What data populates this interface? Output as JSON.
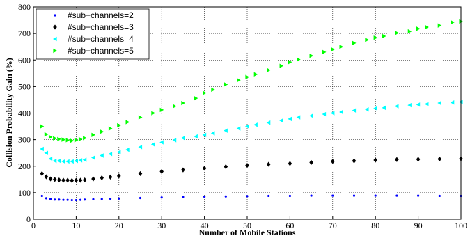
{
  "chart_data": {
    "type": "scatter",
    "xlabel": "Number of Mobile Stations",
    "ylabel": "Collision Probability Gain (%)",
    "xlim": [
      0,
      100
    ],
    "ylim": [
      0,
      800
    ],
    "xticks": [
      0,
      10,
      20,
      30,
      40,
      50,
      60,
      70,
      80,
      90,
      100
    ],
    "yticks": [
      0,
      100,
      200,
      300,
      400,
      500,
      600,
      700,
      800
    ],
    "grid": true,
    "legend_position": "top-left",
    "series": [
      {
        "name": "#sub−channels=2",
        "color": "#0000ff",
        "marker": "circle",
        "x": [
          2,
          3,
          4,
          5,
          6,
          7,
          8,
          9,
          10,
          11,
          12,
          14,
          16,
          18,
          20,
          25,
          30,
          35,
          40,
          45,
          50,
          55,
          60,
          65,
          70,
          75,
          80,
          85,
          90,
          95,
          100
        ],
        "y": [
          88,
          79,
          76,
          74,
          74,
          73,
          73,
          72,
          72,
          73,
          74,
          75,
          76,
          77,
          78,
          80,
          82,
          84,
          85,
          86,
          87,
          88,
          88,
          89,
          89,
          89,
          89,
          89,
          89,
          88,
          88
        ]
      },
      {
        "name": "#sub−channels=3",
        "color": "#000000",
        "marker": "diamond",
        "x": [
          2,
          3,
          4,
          5,
          6,
          7,
          8,
          9,
          10,
          11,
          12,
          14,
          16,
          18,
          20,
          25,
          30,
          35,
          40,
          45,
          50,
          55,
          60,
          65,
          70,
          75,
          80,
          85,
          90,
          95,
          100
        ],
        "y": [
          172,
          160,
          152,
          150,
          148,
          147,
          147,
          146,
          147,
          147,
          148,
          152,
          156,
          159,
          163,
          172,
          180,
          186,
          192,
          198,
          203,
          207,
          210,
          214,
          218,
          220,
          223,
          225,
          226,
          227,
          228
        ]
      },
      {
        "name": "#sub−channels=4",
        "color": "#00ffff",
        "marker": "triangle-left",
        "x": [
          2,
          3,
          4,
          5,
          6,
          7,
          8,
          9,
          10,
          11,
          12,
          14,
          16,
          18,
          20,
          22,
          25,
          28,
          30,
          33,
          35,
          38,
          40,
          42,
          45,
          48,
          50,
          52,
          55,
          58,
          60,
          62,
          65,
          68,
          70,
          72,
          75,
          78,
          80,
          82,
          85,
          88,
          90,
          92,
          95,
          98,
          100
        ],
        "y": [
          265,
          250,
          228,
          220,
          220,
          218,
          218,
          218,
          220,
          222,
          224,
          232,
          240,
          246,
          253,
          262,
          272,
          282,
          290,
          298,
          306,
          312,
          318,
          324,
          334,
          342,
          350,
          356,
          364,
          372,
          378,
          384,
          390,
          396,
          400,
          404,
          410,
          414,
          418,
          420,
          426,
          430,
          432,
          434,
          438,
          440,
          442
        ]
      },
      {
        "name": "#sub−channels=5",
        "color": "#00ff00",
        "marker": "triangle-right",
        "x": [
          2,
          3,
          4,
          5,
          6,
          7,
          8,
          9,
          10,
          11,
          12,
          14,
          16,
          18,
          20,
          22,
          25,
          28,
          30,
          33,
          35,
          38,
          40,
          42,
          45,
          48,
          50,
          52,
          55,
          58,
          60,
          62,
          65,
          68,
          70,
          72,
          75,
          78,
          80,
          82,
          85,
          88,
          90,
          92,
          95,
          98,
          100
        ],
        "y": [
          350,
          320,
          310,
          305,
          302,
          300,
          298,
          296,
          298,
          302,
          306,
          318,
          330,
          342,
          354,
          366,
          384,
          400,
          412,
          426,
          438,
          456,
          476,
          488,
          508,
          524,
          536,
          546,
          562,
          578,
          592,
          602,
          616,
          630,
          640,
          650,
          664,
          676,
          684,
          690,
          702,
          708,
          718,
          724,
          730,
          742,
          745
        ]
      }
    ]
  }
}
